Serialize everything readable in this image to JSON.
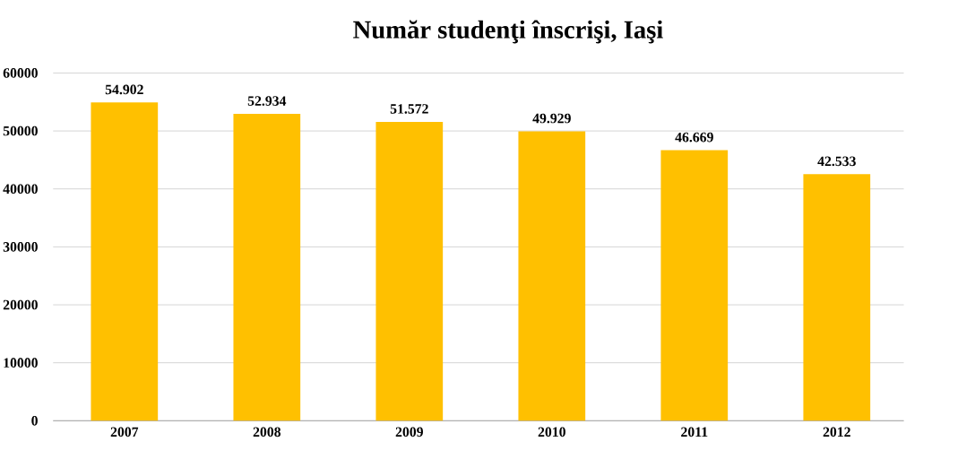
{
  "chart_data": {
    "type": "bar",
    "title": "Număr studenţi înscrişi, Iaşi",
    "categories": [
      "2007",
      "2008",
      "2009",
      "2010",
      "2011",
      "2012"
    ],
    "values": [
      54902,
      52934,
      51572,
      49929,
      46669,
      42533
    ],
    "value_labels": [
      "54.902",
      "52.934",
      "51.572",
      "49.929",
      "46.669",
      "42.533"
    ],
    "color": "#ffc000",
    "ylim": [
      0,
      60000
    ],
    "yticks": [
      0,
      10000,
      20000,
      30000,
      40000,
      50000,
      60000
    ],
    "grid": "y"
  }
}
